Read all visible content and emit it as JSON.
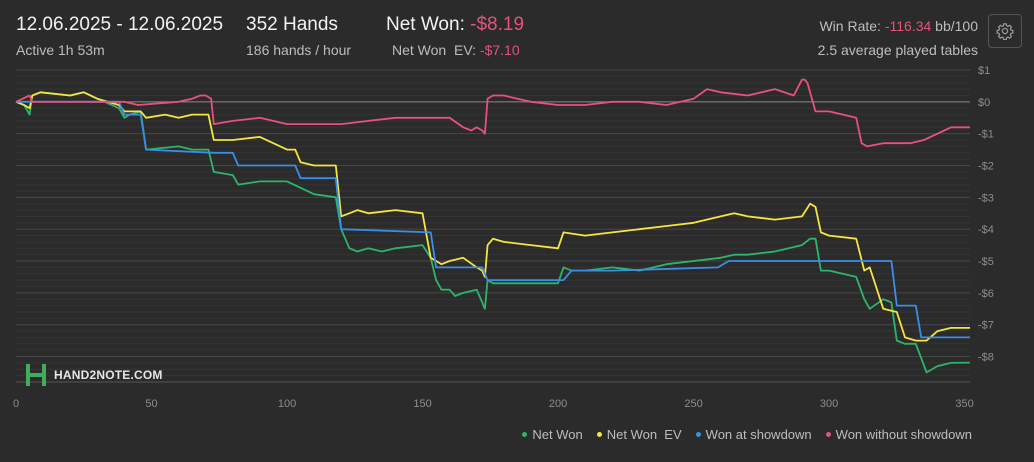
{
  "header": {
    "date_range": "12.06.2025 - 12.06.2025",
    "active": "Active 1h 53m",
    "hands": "352 Hands",
    "hands_per_hour": "186 hands / hour",
    "net_won_label": "Net Won: ",
    "net_won_value": "-$8.19",
    "net_won_ev_label": "Net Won  EV: ",
    "net_won_ev_value": "-$7.10",
    "win_rate_label": "Win Rate: ",
    "win_rate_value": "-116.34",
    "win_rate_unit": " bb/100",
    "tables": "2.5 average played tables"
  },
  "logo_text": "HAND2NOTE.COM",
  "icons": {
    "settings": "gear-icon",
    "logo": "hand2note-logo"
  },
  "colors": {
    "net_won": "#2db56b",
    "net_won_ev": "#f4e542",
    "won_at_showdown": "#3b8ee8",
    "won_without_showdown": "#e8527a",
    "negative_text": "#e8527a"
  },
  "chart_data": {
    "type": "line",
    "title": "",
    "xlabel": "",
    "ylabel": "",
    "xlim": [
      0,
      352
    ],
    "ylim": [
      -8.8,
      1
    ],
    "x_ticks": [
      0,
      50,
      100,
      150,
      200,
      250,
      300,
      350
    ],
    "y_ticks": [
      1,
      0,
      -1,
      -2,
      -3,
      -4,
      -5,
      -6,
      -7,
      -8
    ],
    "y_tick_labels": [
      "$1",
      "$0",
      "-$1",
      "-$2",
      "-$3",
      "-$4",
      "-$5",
      "-$6",
      "-$7",
      "-$8"
    ],
    "grid": true,
    "legend_position": "bottom-right",
    "series": [
      {
        "name": "Net Won",
        "color": "#2db56b",
        "x": [
          0,
          3,
          5,
          6,
          9,
          20,
          25,
          30,
          38,
          40,
          42,
          46,
          48,
          60,
          65,
          71,
          73,
          80,
          82,
          90,
          100,
          105,
          110,
          118,
          120,
          123,
          126,
          130,
          135,
          140,
          150,
          153,
          155,
          157,
          160,
          162,
          165,
          170,
          172,
          173,
          174,
          176,
          180,
          190,
          200,
          202,
          205,
          210,
          220,
          230,
          240,
          250,
          260,
          265,
          270,
          280,
          290,
          293,
          295,
          297,
          300,
          310,
          313,
          315,
          320,
          323,
          325,
          328,
          332,
          336,
          340,
          345,
          352
        ],
        "y": [
          0,
          -0.1,
          -0.4,
          0.2,
          0.3,
          0.2,
          0.3,
          0.1,
          -0.2,
          -0.5,
          -0.4,
          -0.3,
          -1.5,
          -1.4,
          -1.5,
          -1.5,
          -2.2,
          -2.3,
          -2.6,
          -2.5,
          -2.5,
          -2.7,
          -2.9,
          -3.0,
          -4.0,
          -4.6,
          -4.7,
          -4.6,
          -4.7,
          -4.6,
          -4.5,
          -4.9,
          -5.6,
          -5.9,
          -5.9,
          -6.1,
          -6.0,
          -5.9,
          -6.3,
          -6.5,
          -5.6,
          -5.7,
          -5.7,
          -5.7,
          -5.7,
          -5.2,
          -5.3,
          -5.3,
          -5.2,
          -5.3,
          -5.1,
          -5.0,
          -4.9,
          -4.8,
          -4.8,
          -4.7,
          -4.5,
          -4.3,
          -4.3,
          -5.3,
          -5.3,
          -5.5,
          -6.2,
          -6.5,
          -6.2,
          -6.3,
          -7.5,
          -7.6,
          -7.6,
          -8.5,
          -8.3,
          -8.2,
          -8.19
        ]
      },
      {
        "name": "Net Won  EV",
        "color": "#f4e542",
        "x": [
          0,
          3,
          5,
          6,
          9,
          20,
          25,
          30,
          38,
          40,
          46,
          48,
          55,
          60,
          65,
          71,
          73,
          80,
          90,
          100,
          103,
          105,
          110,
          118,
          120,
          123,
          126,
          130,
          140,
          150,
          153,
          155,
          157,
          160,
          165,
          170,
          172,
          173,
          174,
          176,
          180,
          190,
          200,
          202,
          210,
          220,
          230,
          240,
          250,
          260,
          265,
          270,
          280,
          290,
          293,
          295,
          297,
          300,
          310,
          313,
          315,
          320,
          325,
          328,
          332,
          336,
          340,
          345,
          352
        ],
        "y": [
          0,
          -0.1,
          -0.2,
          0.2,
          0.3,
          0.2,
          0.3,
          0.1,
          -0.1,
          -0.3,
          -0.3,
          -0.5,
          -0.4,
          -0.5,
          -0.4,
          -0.4,
          -1.2,
          -1.2,
          -1.1,
          -1.5,
          -1.5,
          -1.9,
          -2.0,
          -2.0,
          -3.6,
          -3.5,
          -3.4,
          -3.5,
          -3.4,
          -3.5,
          -4.9,
          -5.0,
          -5.1,
          -5.0,
          -4.9,
          -5.2,
          -5.3,
          -5.5,
          -4.5,
          -4.3,
          -4.4,
          -4.5,
          -4.6,
          -4.1,
          -4.2,
          -4.1,
          -4.0,
          -3.9,
          -3.8,
          -3.6,
          -3.5,
          -3.6,
          -3.7,
          -3.6,
          -3.2,
          -3.3,
          -4.1,
          -4.2,
          -4.3,
          -5.3,
          -5.2,
          -6.5,
          -6.6,
          -7.4,
          -7.5,
          -7.5,
          -7.2,
          -7.1,
          -7.1
        ]
      },
      {
        "name": "Won at showdown",
        "color": "#3b8ee8",
        "x": [
          0,
          38,
          40,
          46,
          48,
          73,
          80,
          82,
          103,
          105,
          118,
          120,
          153,
          155,
          172,
          174,
          202,
          205,
          220,
          259,
          263,
          323,
          325,
          332,
          334,
          352
        ],
        "y": [
          0,
          0,
          -0.4,
          -0.4,
          -1.5,
          -1.6,
          -1.6,
          -2.0,
          -2.0,
          -2.4,
          -2.4,
          -4.0,
          -4.1,
          -5.2,
          -5.2,
          -5.6,
          -5.6,
          -5.3,
          -5.3,
          -5.2,
          -5.0,
          -5.0,
          -6.4,
          -6.4,
          -7.4,
          -7.4
        ]
      },
      {
        "name": "Won without showdown",
        "color": "#e8527a",
        "x": [
          0,
          5,
          6,
          20,
          30,
          40,
          45,
          60,
          65,
          68,
          70,
          72,
          73,
          80,
          90,
          100,
          110,
          120,
          130,
          140,
          150,
          160,
          165,
          168,
          170,
          172,
          173,
          174,
          176,
          180,
          185,
          190,
          200,
          210,
          220,
          230,
          240,
          250,
          255,
          260,
          270,
          280,
          287,
          290,
          291,
          292,
          295,
          300,
          310,
          312,
          314,
          320,
          330,
          335,
          340,
          345,
          352
        ],
        "y": [
          0,
          0.2,
          0,
          0,
          0,
          0,
          -0.1,
          0,
          0.1,
          0.2,
          0.2,
          0.1,
          -0.7,
          -0.6,
          -0.5,
          -0.7,
          -0.7,
          -0.7,
          -0.6,
          -0.5,
          -0.5,
          -0.5,
          -0.8,
          -0.9,
          -0.8,
          -0.9,
          -1.0,
          0.1,
          0.2,
          0.2,
          0.1,
          0.0,
          -0.1,
          -0.1,
          0.0,
          0.0,
          -0.1,
          0.1,
          0.4,
          0.3,
          0.2,
          0.4,
          0.2,
          0.7,
          0.7,
          0.6,
          -0.3,
          -0.3,
          -0.5,
          -1.3,
          -1.4,
          -1.3,
          -1.3,
          -1.2,
          -1.0,
          -0.8,
          -0.8
        ]
      }
    ]
  }
}
